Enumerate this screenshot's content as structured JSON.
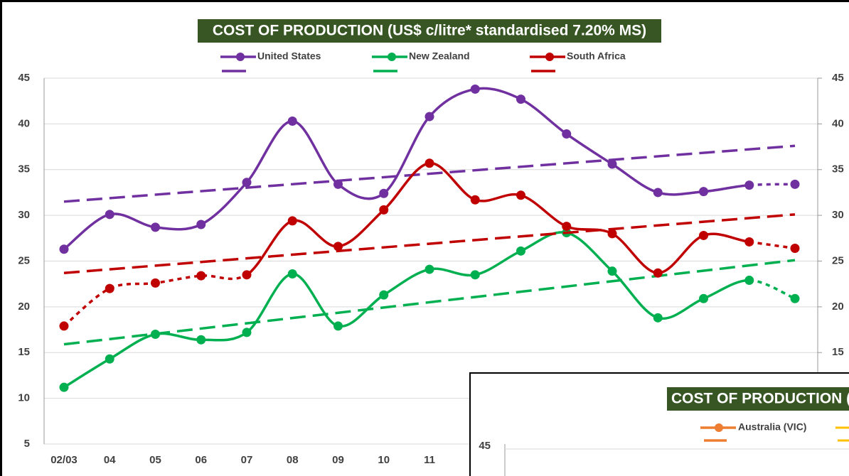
{
  "chart_data": [
    {
      "type": "line",
      "title": "COST OF PRODUCTION (US$ c/litre* standardised 7.20% MS)",
      "categories": [
        "02/03",
        "04",
        "05",
        "06",
        "07",
        "08",
        "09",
        "10",
        "11",
        null,
        null,
        null,
        null,
        null,
        null,
        null,
        null
      ],
      "series": [
        {
          "name": "United States",
          "color": "#7030a0",
          "values": [
            26.3,
            30.1,
            28.7,
            29.0,
            33.6,
            40.3,
            33.4,
            32.4,
            40.8,
            43.8,
            42.7,
            38.9,
            35.6,
            32.5,
            32.6,
            33.3,
            33.4
          ],
          "dashed": [
            [
              15,
              16
            ]
          ],
          "trend": [
            31.5,
            37.6
          ]
        },
        {
          "name": "New Zealand",
          "color": "#00b050",
          "values": [
            11.2,
            14.3,
            17.0,
            16.4,
            17.2,
            23.6,
            17.9,
            21.3,
            24.1,
            23.5,
            26.1,
            28.1,
            23.9,
            18.8,
            20.9,
            22.9,
            20.9
          ],
          "dashed": [
            [
              15,
              16
            ]
          ],
          "trend": [
            15.9,
            25.1
          ]
        },
        {
          "name": "South Africa",
          "color": "#c00000",
          "values": [
            17.9,
            22.0,
            22.6,
            23.4,
            23.5,
            29.4,
            26.6,
            30.6,
            35.7,
            31.7,
            32.2,
            28.8,
            28.0,
            23.7,
            27.8,
            27.1,
            26.4
          ],
          "dashed": [
            [
              0,
              4
            ],
            [
              15,
              16
            ]
          ],
          "trend": [
            23.7,
            30.1
          ]
        }
      ],
      "ylim": [
        5,
        45
      ],
      "yticks": [
        5,
        10,
        15,
        20,
        25,
        30,
        35,
        40,
        45
      ],
      "y2lim": [
        5,
        45
      ],
      "y2ticks": [
        15,
        20,
        25,
        30,
        35,
        40,
        45
      ],
      "grid": true,
      "legend": "top",
      "smooth": true
    },
    {
      "type": "line",
      "title": "COST OF PRODUCTION (",
      "series": [
        {
          "name": "Australia (VIC)",
          "color": "#ed7d31"
        }
      ],
      "yticks": [
        45
      ]
    }
  ]
}
